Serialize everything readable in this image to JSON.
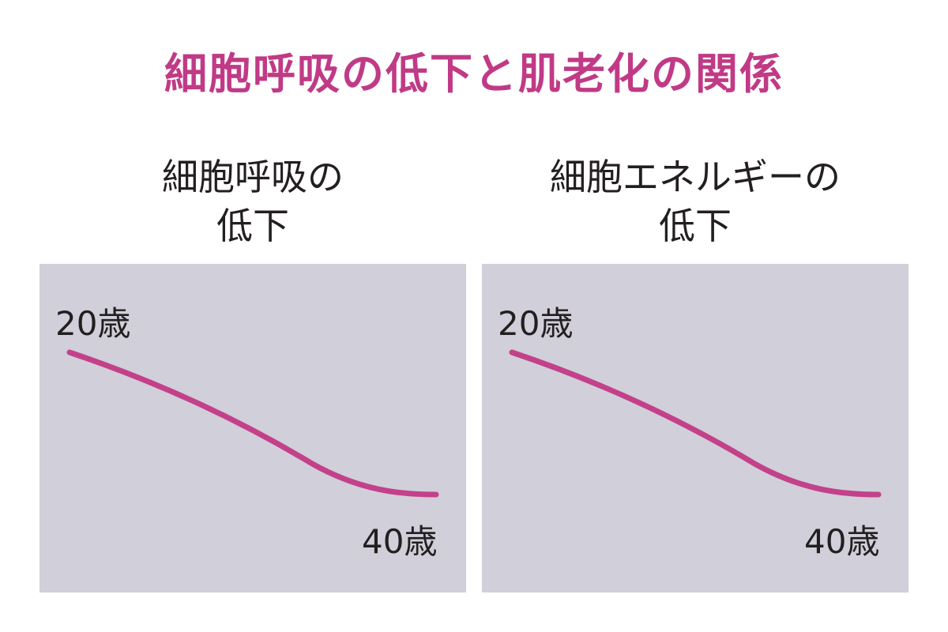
{
  "title": "細胞呼吸の低下と肌老化の関係",
  "colors": {
    "title": "#c03a86",
    "line": "#c3418a",
    "panel_bg": "#d1cfd9"
  },
  "chart_data": [
    {
      "type": "line",
      "title_lines": [
        "細胞呼吸の",
        "低下"
      ],
      "x": [
        "20歳",
        "40歳"
      ],
      "start_label": "20歳",
      "end_label": "40歳",
      "series": [
        {
          "values": [
            1.0,
            0.0
          ]
        }
      ],
      "grid": false
    },
    {
      "type": "line",
      "title_lines": [
        "細胞エネルギーの",
        "低下"
      ],
      "x": [
        "20歳",
        "40歳"
      ],
      "start_label": "20歳",
      "end_label": "40歳",
      "series": [
        {
          "values": [
            1.0,
            0.0
          ]
        }
      ],
      "grid": false
    }
  ]
}
